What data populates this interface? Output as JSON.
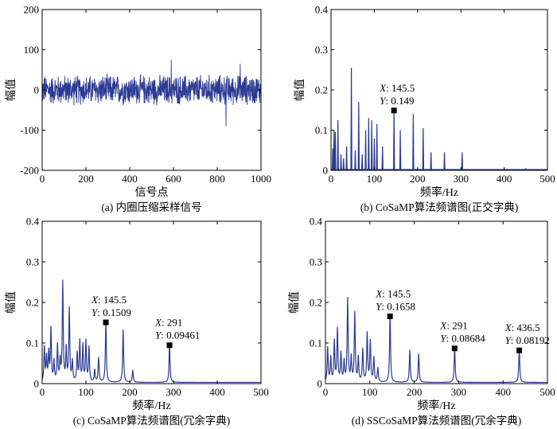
{
  "chart_data": [
    {
      "id": "a",
      "type": "line",
      "caption": "(a) 内圈压缩采样信号",
      "xlabel": "信号点",
      "ylabel": "幅值",
      "xlim": [
        0,
        1000
      ],
      "ylim": [
        -200,
        200
      ],
      "xticks": [
        0,
        200,
        400,
        600,
        800,
        1000
      ],
      "yticks": [
        -200,
        -100,
        0,
        100,
        200
      ],
      "line_color": "#2b3a93",
      "series": [
        {
          "kind": "random_signal",
          "n_points": 1000,
          "typical_amplitude": 30,
          "max_value": 75,
          "min_value": -90
        }
      ],
      "annotations": []
    },
    {
      "id": "b",
      "type": "line",
      "caption": "(b) CoSaMP算法频谱图(正交字典)",
      "xlabel": "频率/Hz",
      "ylabel": "幅值",
      "xlim": [
        0,
        500
      ],
      "ylim": [
        0,
        0.4
      ],
      "xticks": [
        0,
        100,
        200,
        300,
        400,
        500
      ],
      "yticks": [
        0,
        0.1,
        0.2,
        0.3,
        0.4
      ],
      "line_color": "#2b3a93",
      "series": [
        {
          "kind": "discrete_spectrum",
          "peaks": [
            [
              4,
              0.055
            ],
            [
              7,
              0.1
            ],
            [
              10,
              0.095
            ],
            [
              16,
              0.125
            ],
            [
              23,
              0.04
            ],
            [
              29,
              0.03
            ],
            [
              36,
              0.06
            ],
            [
              47,
              0.255
            ],
            [
              56,
              0.05
            ],
            [
              64,
              0.17
            ],
            [
              72,
              0.04
            ],
            [
              80,
              0.1
            ],
            [
              87,
              0.13
            ],
            [
              94,
              0.125
            ],
            [
              100,
              0.08
            ],
            [
              106,
              0.115
            ],
            [
              119,
              0.06
            ],
            [
              145.5,
              0.149
            ],
            [
              160,
              0.1
            ],
            [
              190,
              0.14
            ],
            [
              213,
              0.105
            ],
            [
              231,
              0.045
            ],
            [
              262,
              0.045
            ],
            [
              303,
              0.045
            ],
            [
              450,
              0.004
            ]
          ]
        }
      ],
      "annotations": [
        {
          "x": 145.5,
          "y": 0.149,
          "label_x": "145.5",
          "label_y": "0.149"
        }
      ]
    },
    {
      "id": "c",
      "type": "line",
      "caption": "(c) CoSaMP算法频谱图(冗余字典)",
      "xlabel": "频率/Hz",
      "ylabel": "幅值",
      "xlim": [
        0,
        500
      ],
      "ylim": [
        0,
        0.4
      ],
      "xticks": [
        0,
        100,
        200,
        300,
        400,
        500
      ],
      "yticks": [
        0,
        0.1,
        0.2,
        0.3,
        0.4
      ],
      "line_color": "#2b3a93",
      "series": [
        {
          "kind": "lorentzian_spectrum",
          "peaks": [
            [
              5,
              0.085
            ],
            [
              10,
              0.06
            ],
            [
              15,
              0.07
            ],
            [
              20,
              0.13
            ],
            [
              27,
              0.05
            ],
            [
              35,
              0.09
            ],
            [
              41,
              0.05
            ],
            [
              47,
              0.245
            ],
            [
              55,
              0.08
            ],
            [
              62,
              0.18
            ],
            [
              69,
              0.05
            ],
            [
              80,
              0.07
            ],
            [
              86,
              0.1
            ],
            [
              93,
              0.09
            ],
            [
              100,
              0.1
            ],
            [
              107,
              0.085
            ],
            [
              120,
              0.03
            ],
            [
              129,
              0.06
            ],
            [
              145.5,
              0.1509
            ],
            [
              185,
              0.13
            ],
            [
              207,
              0.03
            ],
            [
              291,
              0.09461
            ]
          ]
        }
      ],
      "annotations": [
        {
          "x": 145.5,
          "y": 0.1509,
          "label_x": "145.5",
          "label_y": "0.1509"
        },
        {
          "x": 291,
          "y": 0.09461,
          "label_x": "291",
          "label_y": "0.09461"
        }
      ]
    },
    {
      "id": "d",
      "type": "line",
      "caption": "(d) SSCoSaMP算法频谱图(冗余字典)",
      "xlabel": "频率/Hz",
      "ylabel": "幅值",
      "xlim": [
        0,
        500
      ],
      "ylim": [
        0,
        0.4
      ],
      "xticks": [
        0,
        100,
        200,
        300,
        400,
        500
      ],
      "yticks": [
        0,
        0.1,
        0.2,
        0.3,
        0.4
      ],
      "line_color": "#2b3a93",
      "series": [
        {
          "kind": "lorentzian_spectrum",
          "peaks": [
            [
              5,
              0.085
            ],
            [
              12,
              0.06
            ],
            [
              20,
              0.1
            ],
            [
              27,
              0.13
            ],
            [
              35,
              0.07
            ],
            [
              42,
              0.05
            ],
            [
              50,
              0.205
            ],
            [
              58,
              0.06
            ],
            [
              66,
              0.17
            ],
            [
              74,
              0.06
            ],
            [
              84,
              0.08
            ],
            [
              94,
              0.12
            ],
            [
              101,
              0.1
            ],
            [
              109,
              0.06
            ],
            [
              118,
              0.035
            ],
            [
              145.5,
              0.1658
            ],
            [
              190,
              0.08
            ],
            [
              210,
              0.07
            ],
            [
              291,
              0.08684
            ],
            [
              436.5,
              0.08192
            ]
          ]
        }
      ],
      "annotations": [
        {
          "x": 145.5,
          "y": 0.1658,
          "label_x": "145.5",
          "label_y": "0.1658"
        },
        {
          "x": 291,
          "y": 0.08684,
          "label_x": "291",
          "label_y": "0.08684"
        },
        {
          "x": 436.5,
          "y": 0.08192,
          "label_x": "436.5",
          "label_y": "0.08192"
        }
      ]
    }
  ]
}
